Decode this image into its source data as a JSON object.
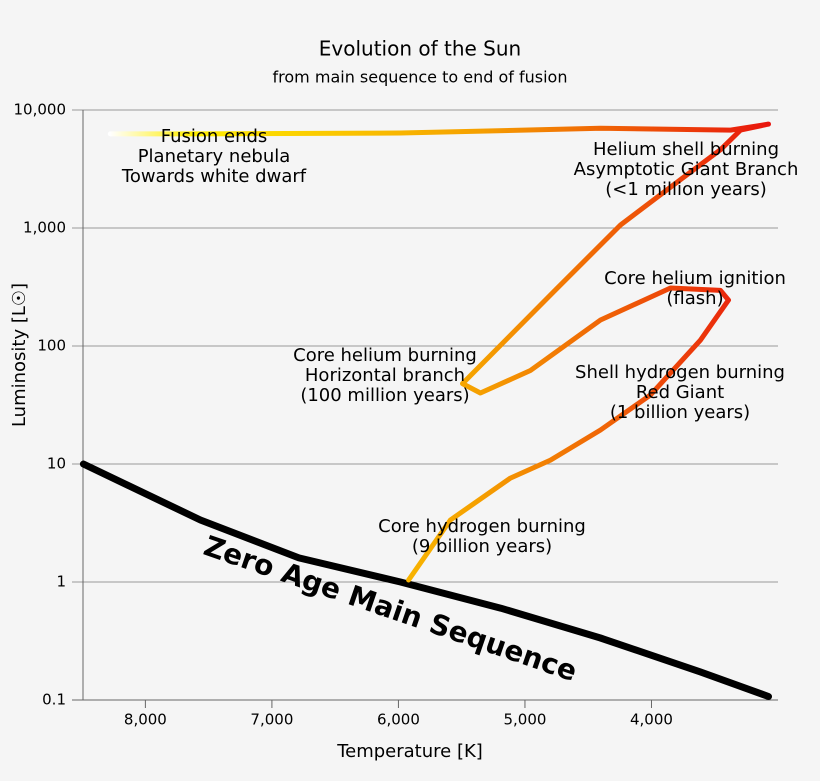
{
  "chart_data": {
    "type": "line",
    "title": "Evolution of the Sun",
    "subtitle": "from main sequence to end of fusion",
    "xlabel": "Temperature [K]",
    "ylabel": "Luminosity [L☉]",
    "xlim": [
      8580,
      3000
    ],
    "ylim": [
      0.1,
      10000
    ],
    "ylog": true,
    "grid": true,
    "xticks": [
      {
        "value": 8000,
        "label": "8,000"
      },
      {
        "value": 7000,
        "label": "7,000"
      },
      {
        "value": 6000,
        "label": "6,000"
      },
      {
        "value": 5000,
        "label": "5,000"
      },
      {
        "value": 4000,
        "label": "4,000"
      }
    ],
    "yticks": [
      0.1,
      1,
      10,
      100,
      {
        "value": 1000,
        "label": "1,000"
      },
      {
        "value": 10000,
        "label": "10,000"
      }
    ],
    "series": [
      {
        "name": "Zero Age Main Sequence",
        "color": "#000000",
        "x": [
          8490,
          7565,
          6787,
          5984,
          5190,
          4403,
          3613,
          3075
        ],
        "values": [
          10,
          3.35,
          1.6,
          1,
          0.6,
          0.335,
          0.173,
          0.107
        ]
      },
      {
        "colors": [
          "#ffffff",
          "#ffee00",
          "#f5a000",
          "#e8100e"
        ],
        "x": [
          5920,
          5589,
          5115,
          4798,
          4403,
          4008,
          3613,
          3391,
          3455,
          3850,
          4403,
          4957,
          5352,
          5494,
          4759,
          4245,
          3771,
          3455,
          3296,
          3075,
          3375,
          4403,
          5984,
          7565,
          8277
        ],
        "values": [
          1.04,
          3.35,
          7.6,
          10.8,
          19.4,
          38.5,
          112,
          245,
          296,
          310,
          166,
          62,
          40,
          48,
          298,
          1060,
          2570,
          4600,
          6760,
          7600,
          6760,
          7000,
          6380,
          6270,
          6270
        ]
      }
    ],
    "annotations": [
      [
        "Fusion ends",
        "Planetary nebula",
        "Towards white dwarf"
      ],
      [
        "Helium shell burning",
        "Asymptotic Giant Branch",
        "(<1 million years)"
      ],
      [
        "Core helium ignition",
        "(flash)"
      ],
      [
        "Core helium burning",
        "Horizontal branch",
        "(100 million years)"
      ],
      [
        "Shell hydrogen burning",
        "Red Giant",
        "(1 billion years)"
      ],
      [
        "Core hydrogen burning",
        "(9 billion years)"
      ]
    ]
  }
}
